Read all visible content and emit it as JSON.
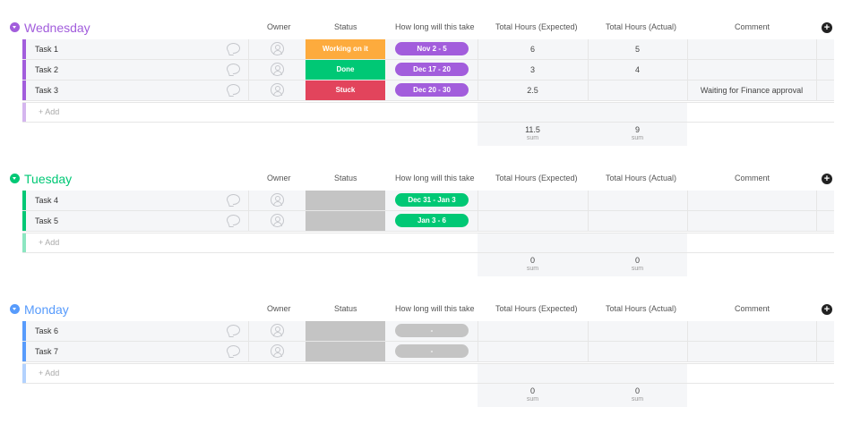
{
  "colors": {
    "wednesday": "#a25ddc",
    "tuesday": "#00c875",
    "monday": "#579bfc",
    "working": "#fdab3d",
    "done": "#00c875",
    "stuck": "#e2445c",
    "empty": "#c4c4c4"
  },
  "columns": {
    "owner": "Owner",
    "status": "Status",
    "timeline": "How long will this take",
    "expected": "Total Hours (Expected)",
    "actual": "Total Hours (Actual)",
    "comment": "Comment"
  },
  "groups": [
    {
      "title": "Wednesday",
      "add_label": "+ Add",
      "rows": [
        {
          "name": "Task 1",
          "status": "Working on it",
          "timeline": "Nov 2 - 5",
          "expected": "6",
          "actual": "5",
          "comment": ""
        },
        {
          "name": "Task 2",
          "status": "Done",
          "timeline": "Dec 17 - 20",
          "expected": "3",
          "actual": "4",
          "comment": ""
        },
        {
          "name": "Task 3",
          "status": "Stuck",
          "timeline": "Dec 20 - 30",
          "expected": "2.5",
          "actual": "",
          "comment": "Waiting for Finance approval"
        }
      ],
      "sum_expected": "11.5",
      "sum_actual": "9",
      "sum_label": "sum"
    },
    {
      "title": "Tuesday",
      "add_label": "+ Add",
      "rows": [
        {
          "name": "Task 4",
          "status": "",
          "timeline": "Dec 31 - Jan 3",
          "expected": "",
          "actual": "",
          "comment": ""
        },
        {
          "name": "Task 5",
          "status": "",
          "timeline": "Jan 3 - 6",
          "expected": "",
          "actual": "",
          "comment": ""
        }
      ],
      "sum_expected": "0",
      "sum_actual": "0",
      "sum_label": "sum"
    },
    {
      "title": "Monday",
      "add_label": "+ Add",
      "rows": [
        {
          "name": "Task 6",
          "status": "",
          "timeline": "-",
          "expected": "",
          "actual": "",
          "comment": ""
        },
        {
          "name": "Task 7",
          "status": "",
          "timeline": "-",
          "expected": "",
          "actual": "",
          "comment": ""
        }
      ],
      "sum_expected": "0",
      "sum_actual": "0",
      "sum_label": "sum"
    }
  ]
}
